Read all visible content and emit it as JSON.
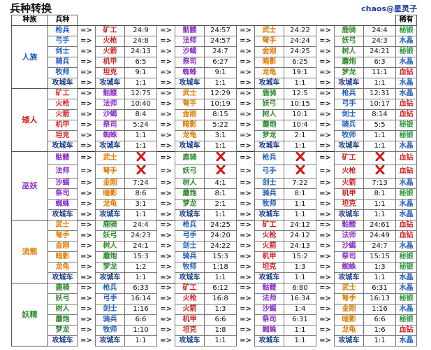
{
  "header": {
    "title": "兵种转换",
    "credit": "chaos@星灵子",
    "race_col": "种族",
    "unit_col": "兵种",
    "rarity_col": "稀有"
  },
  "arrow": "=>",
  "races": [
    {
      "name": "人族",
      "rows": [
        {
          "unit": "枪兵",
          "targets": [
            [
              "矿工",
              "24:9"
            ],
            [
              "骷髅",
              "24:57"
            ],
            [
              "武士",
              "24:22"
            ],
            [
              "鹿骑",
              "24:4"
            ]
          ],
          "rarity": "秘银"
        },
        {
          "unit": "弓手",
          "targets": [
            [
              "火枪",
              "24:8"
            ],
            [
              "法师",
              "24:57"
            ],
            [
              "弩手",
              "24:24"
            ],
            [
              "妖弓",
              "24:3"
            ]
          ],
          "rarity": "水晶"
        },
        {
          "unit": "剑士",
          "targets": [
            [
              "火箭",
              "24:13"
            ],
            [
              "沙蝎",
              "24:7"
            ],
            [
              "金刚",
              "24:25"
            ],
            [
              "树人",
              "24:21"
            ]
          ],
          "rarity": "秘银"
        },
        {
          "unit": "骑兵",
          "targets": [
            [
              "机甲",
              "6:5"
            ],
            [
              "祭司",
              "6:27"
            ],
            [
              "暗影",
              "6:25"
            ],
            [
              "蘑炮",
              "6:3"
            ]
          ],
          "rarity": "水晶"
        },
        {
          "unit": "牧师",
          "targets": [
            [
              "坦克",
              "9:1"
            ],
            [
              "蜘蛛",
              "9:1"
            ],
            [
              "龙龟",
              "19:1"
            ],
            [
              "梦龙",
              "11:1"
            ]
          ],
          "rarity": "血钻"
        },
        {
          "unit": "攻城车",
          "targets": [
            [
              "攻城车",
              "1:1"
            ],
            [
              "攻城车",
              "1:1"
            ],
            [
              "攻城车",
              "1:1"
            ],
            [
              "攻城车",
              "1:1"
            ]
          ],
          "rarity": "水晶"
        }
      ]
    },
    {
      "name": "矮人",
      "rows": [
        {
          "unit": "矿工",
          "targets": [
            [
              "骷髅",
              "12:75"
            ],
            [
              "武士",
              "12:29"
            ],
            [
              "鹿骑",
              "12:5"
            ],
            [
              "枪兵",
              "12:31"
            ]
          ],
          "rarity": "水晶"
        },
        {
          "unit": "火枪",
          "targets": [
            [
              "法师",
              "10:40"
            ],
            [
              "弩手",
              "10:19"
            ],
            [
              "妖弓",
              "10:15"
            ],
            [
              "弓手",
              "10:17"
            ]
          ],
          "rarity": "血钻"
        },
        {
          "unit": "火箭",
          "targets": [
            [
              "沙蝎",
              "8:4"
            ],
            [
              "金刚",
              "8:15"
            ],
            [
              "树人",
              "10:1"
            ],
            [
              "剑士",
              "8:14"
            ]
          ],
          "rarity": "血钻"
        },
        {
          "unit": "机甲",
          "targets": [
            [
              "祭司",
              "5:24"
            ],
            [
              "暗影",
              "5:22"
            ],
            [
              "蘑炮",
              "10:4"
            ],
            [
              "骑兵",
              "5:5"
            ]
          ],
          "rarity": "秘银"
        },
        {
          "unit": "坦克",
          "targets": [
            [
              "蜘蛛",
              "1:1"
            ],
            [
              "龙龟",
              "3:1"
            ],
            [
              "梦龙",
              "2:1"
            ],
            [
              "牧师",
              "1:1"
            ]
          ],
          "rarity": "秘银"
        },
        {
          "unit": "攻城车",
          "targets": [
            [
              "攻城车",
              "1:1"
            ],
            [
              "攻城车",
              "1:1"
            ],
            [
              "攻城车",
              "1:1"
            ],
            [
              "攻城车",
              "1:1"
            ]
          ],
          "rarity": "水晶"
        }
      ]
    },
    {
      "name": "巫妖",
      "rows": [
        {
          "unit": "骷髅",
          "targets": [
            [
              "武士",
              null
            ],
            [
              "鹿骑",
              null
            ],
            [
              "枪兵",
              null
            ],
            [
              "矿工",
              null
            ]
          ],
          "rarity": "血钻"
        },
        {
          "unit": "法师",
          "targets": [
            [
              "弩手",
              null
            ],
            [
              "妖弓",
              null
            ],
            [
              "弓手",
              null
            ],
            [
              "火枪",
              null
            ]
          ],
          "rarity": "血钻"
        },
        {
          "unit": "沙蝎",
          "targets": [
            [
              "金刚",
              "7:24"
            ],
            [
              "树人",
              "4:1"
            ],
            [
              "剑士",
              "7:22"
            ],
            [
              "火箭",
              "7:13"
            ]
          ],
          "rarity": "水晶"
        },
        {
          "unit": "祭司",
          "targets": [
            [
              "暗影",
              "8:6"
            ],
            [
              "蘑炮",
              "8:1"
            ],
            [
              "骑兵",
              "8:1"
            ],
            [
              "机甲",
              "8:1"
            ]
          ],
          "rarity": "秘银"
        },
        {
          "unit": "蜘蛛",
          "targets": [
            [
              "龙龟",
              "3:1"
            ],
            [
              "梦龙",
              "2:1"
            ],
            [
              "牧师",
              "1:1"
            ],
            [
              "坦克",
              "1:1"
            ]
          ],
          "rarity": "水晶"
        },
        {
          "unit": "攻城车",
          "targets": [
            [
              "攻城车",
              "1:1"
            ],
            [
              "攻城车",
              "1:1"
            ],
            [
              "攻城车",
              "1:1"
            ],
            [
              "攻城车",
              "1:1"
            ]
          ],
          "rarity": "水晶"
        }
      ]
    },
    {
      "name": "流熊",
      "rows": [
        {
          "unit": "武士",
          "targets": [
            [
              "鹿骑",
              "24:4"
            ],
            [
              "枪兵",
              "24:25"
            ],
            [
              "矿工",
              "24:12"
            ],
            [
              "骷髅",
              "24:61"
            ]
          ],
          "rarity": "血钻"
        },
        {
          "unit": "弩手",
          "targets": [
            [
              "妖弓",
              "24:23"
            ],
            [
              "弓手",
              "24:20"
            ],
            [
              "火枪",
              "24:12"
            ],
            [
              "法师",
              "24:49"
            ]
          ],
          "rarity": "血钻"
        },
        {
          "unit": "金刚",
          "targets": [
            [
              "树人",
              "24:1"
            ],
            [
              "剑士",
              "24:22"
            ],
            [
              "火箭",
              "24:13"
            ],
            [
              "沙蝎",
              "24:7"
            ]
          ],
          "rarity": "水晶"
        },
        {
          "unit": "暗影",
          "targets": [
            [
              "蘑炮",
              "15:3"
            ],
            [
              "骑兵",
              "15:3"
            ],
            [
              "机甲",
              "15:2"
            ],
            [
              "祭司",
              "15:15"
            ]
          ],
          "rarity": "秘银"
        },
        {
          "unit": "龙龟",
          "targets": [
            [
              "梦龙",
              "1:2"
            ],
            [
              "牧师",
              "1:18"
            ],
            [
              "坦克",
              "1:3"
            ],
            [
              "蜘蛛",
              "1:3"
            ]
          ],
          "rarity": "秘银"
        },
        {
          "unit": "攻城车",
          "targets": [
            [
              "攻城车",
              "1:1"
            ],
            [
              "攻城车",
              "1:1"
            ],
            [
              "攻城车",
              "1:1"
            ],
            [
              "攻城车",
              "1:1"
            ]
          ],
          "rarity": "水晶"
        }
      ]
    },
    {
      "name": "妖精",
      "rows": [
        {
          "unit": "鹿骑",
          "targets": [
            [
              "枪兵",
              "6:33"
            ],
            [
              "矿工",
              "6:12"
            ],
            [
              "骷髅",
              "6:80"
            ],
            [
              "武士",
              "6:31"
            ]
          ],
          "rarity": "水晶"
        },
        {
          "unit": "妖弓",
          "targets": [
            [
              "弓手",
              "16:14"
            ],
            [
              "火枪",
              "16:8"
            ],
            [
              "法师",
              "16:34"
            ],
            [
              "弩手",
              "16:13"
            ]
          ],
          "rarity": "秘银"
        },
        {
          "unit": "树人",
          "targets": [
            [
              "剑士",
              "1:16"
            ],
            [
              "火箭",
              "1:3"
            ],
            [
              "沙蝎",
              "1:4"
            ],
            [
              "金刚",
              "1:16"
            ]
          ],
          "rarity": "水晶"
        },
        {
          "unit": "蘑炮",
          "targets": [
            [
              "骑兵",
              "6:6"
            ],
            [
              "机甲",
              "6:6"
            ],
            [
              "祭司",
              "6:31"
            ],
            [
              "暗影",
              "6:6"
            ]
          ],
          "rarity": "秘银"
        },
        {
          "unit": "梦龙",
          "targets": [
            [
              "牧师",
              "1:10"
            ],
            [
              "坦克",
              "1:8"
            ],
            [
              "蜘蛛",
              "1:1"
            ],
            [
              "龙龟",
              "1:6"
            ]
          ],
          "rarity": "血钻"
        },
        {
          "unit": "攻城车",
          "targets": [
            [
              "攻城车",
              "1:1"
            ],
            [
              "攻城车",
              "1:1"
            ],
            [
              "攻城车",
              "1:1"
            ],
            [
              "攻城车",
              "1:1"
            ]
          ],
          "rarity": "水晶"
        }
      ]
    }
  ]
}
